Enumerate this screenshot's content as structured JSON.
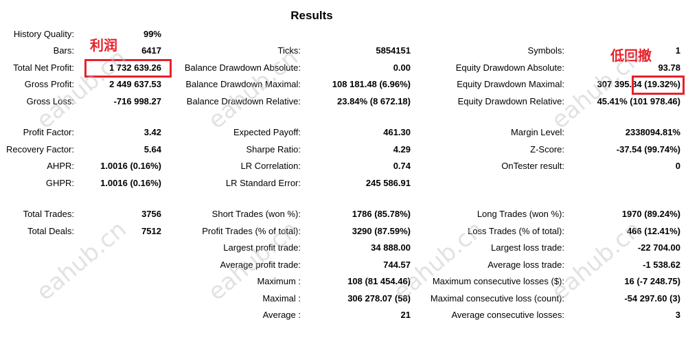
{
  "title": "Results",
  "rows": [
    {
      "cols": [
        [
          "History Quality:",
          "99%"
        ],
        null,
        null
      ]
    },
    {
      "cols": [
        [
          "Bars:",
          "6417"
        ],
        [
          "Ticks:",
          "5854151"
        ],
        [
          "Symbols:",
          "1"
        ]
      ]
    },
    {
      "cols": [
        [
          "Total Net Profit:",
          "1 732 639.26"
        ],
        [
          "Balance Drawdown Absolute:",
          "0.00"
        ],
        [
          "Equity Drawdown Absolute:",
          "93.78"
        ]
      ]
    },
    {
      "cols": [
        [
          "Gross Profit:",
          "2 449 637.53"
        ],
        [
          "Balance Drawdown Maximal:",
          "108 181.48 (6.96%)"
        ],
        [
          "Equity Drawdown Maximal:",
          "307 395.84 (19.32%)"
        ]
      ]
    },
    {
      "cols": [
        [
          "Gross Loss:",
          "-716 998.27"
        ],
        [
          "Balance Drawdown Relative:",
          "23.84% (8 672.18)"
        ],
        [
          "Equity Drawdown Relative:",
          "45.41% (101 978.46)"
        ]
      ]
    },
    {
      "cols": [
        [
          "Profit Factor:",
          "3.42"
        ],
        [
          "Expected Payoff:",
          "461.30"
        ],
        [
          "Margin Level:",
          "2338094.81%"
        ]
      ]
    },
    {
      "cols": [
        [
          "Recovery Factor:",
          "5.64"
        ],
        [
          "Sharpe Ratio:",
          "4.29"
        ],
        [
          "Z-Score:",
          "-37.54 (99.74%)"
        ]
      ]
    },
    {
      "cols": [
        [
          "AHPR:",
          "1.0016 (0.16%)"
        ],
        [
          "LR Correlation:",
          "0.74"
        ],
        [
          "OnTester result:",
          "0"
        ]
      ]
    },
    {
      "cols": [
        [
          "GHPR:",
          "1.0016 (0.16%)"
        ],
        [
          "LR Standard Error:",
          "245 586.91"
        ],
        null
      ]
    },
    {
      "cols": [
        [
          "Total Trades:",
          "3756"
        ],
        [
          "Short Trades (won %):",
          "1786 (85.78%)"
        ],
        [
          "Long Trades (won %):",
          "1970 (89.24%)"
        ]
      ]
    },
    {
      "cols": [
        [
          "Total Deals:",
          "7512"
        ],
        [
          "Profit Trades (% of total):",
          "3290 (87.59%)"
        ],
        [
          "Loss Trades (% of total):",
          "466 (12.41%)"
        ]
      ]
    },
    {
      "cols": [
        null,
        [
          "Largest profit trade:",
          "34 888.00"
        ],
        [
          "Largest loss trade:",
          "-22 704.00"
        ]
      ]
    },
    {
      "cols": [
        null,
        [
          "Average profit trade:",
          "744.57"
        ],
        [
          "Average loss trade:",
          "-1 538.62"
        ]
      ]
    },
    {
      "cols": [
        null,
        [
          "Maximum :",
          "108 (81 454.46)"
        ],
        [
          "Maximum consecutive losses ($):",
          "16 (-7 248.75)"
        ]
      ]
    },
    {
      "cols": [
        null,
        [
          "Maximal :",
          "306 278.07 (58)"
        ],
        [
          "Maximal consecutive loss (count):",
          "-54 297.60 (3)"
        ]
      ]
    },
    {
      "cols": [
        null,
        [
          "Average :",
          "21"
        ],
        [
          "Average consecutive losses:",
          "3"
        ]
      ]
    }
  ],
  "annotations": {
    "profit": "利润",
    "low_drawdown": "低回撤"
  },
  "watermark": "eahub.cn",
  "colors": {
    "annotation": "#e8202a"
  }
}
